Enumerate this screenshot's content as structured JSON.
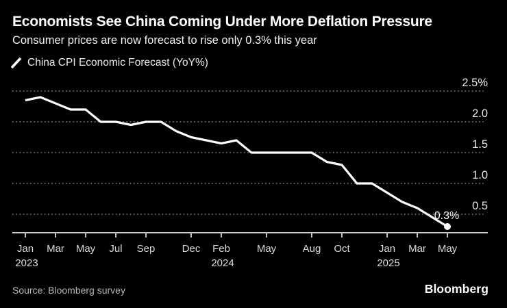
{
  "header": {
    "title": "Economists See China Coming Under More Deflation Pressure",
    "subtitle": "Consumer prices are now forecast to rise only 0.3% this year"
  },
  "legend": {
    "label": "China CPI Economic Forecast (YoY%)"
  },
  "chart_data": {
    "type": "line",
    "title": "China CPI Economic Forecast (YoY%)",
    "series": [
      {
        "name": "China CPI Economic Forecast (YoY%)",
        "values": [
          2.35,
          2.4,
          2.3,
          2.2,
          2.2,
          2.0,
          2.0,
          1.95,
          2.0,
          2.0,
          1.85,
          1.75,
          1.7,
          1.65,
          1.7,
          1.5,
          1.5,
          1.5,
          1.5,
          1.5,
          1.35,
          1.3,
          1.0,
          1.0,
          0.85,
          0.7,
          0.6,
          0.45,
          0.3
        ]
      }
    ],
    "x": [
      "Jan 2023",
      "Feb 2023",
      "Mar 2023",
      "Apr 2023",
      "May 2023",
      "Jun 2023",
      "Jul 2023",
      "Aug 2023",
      "Sep 2023",
      "Oct 2023",
      "Nov 2023",
      "Dec 2023",
      "Jan 2024",
      "Feb 2024",
      "Mar 2024",
      "Apr 2024",
      "May 2024",
      "Jun 2024",
      "Jul 2024",
      "Aug 2024",
      "Sep 2024",
      "Oct 2024",
      "Nov 2024",
      "Dec 2024",
      "Jan 2025",
      "Feb 2025",
      "Mar 2025",
      "Apr 2025",
      "May 2025"
    ],
    "x_ticks": [
      {
        "index": 0,
        "label": "Jan",
        "year": "2023"
      },
      {
        "index": 2,
        "label": "Mar"
      },
      {
        "index": 4,
        "label": "May"
      },
      {
        "index": 6,
        "label": "Jul"
      },
      {
        "index": 8,
        "label": "Sep"
      },
      {
        "index": 11,
        "label": "Dec"
      },
      {
        "index": 13,
        "label": "Feb",
        "year": "2024"
      },
      {
        "index": 16,
        "label": "May"
      },
      {
        "index": 19,
        "label": "Aug"
      },
      {
        "index": 21,
        "label": "Oct"
      },
      {
        "index": 24,
        "label": "Jan",
        "year": "2025"
      },
      {
        "index": 26,
        "label": "Mar"
      },
      {
        "index": 28,
        "label": "May"
      }
    ],
    "y_ticks": [
      {
        "value": 2.5,
        "label": "2.5%"
      },
      {
        "value": 2.0,
        "label": "2.0"
      },
      {
        "value": 1.5,
        "label": "1.5"
      },
      {
        "value": 1.0,
        "label": "1.0"
      },
      {
        "value": 0.5,
        "label": "0.5"
      }
    ],
    "ylim": [
      0.2,
      2.7
    ],
    "grid": true,
    "legend_position": "top-left",
    "end_point_label": "0.3%",
    "line_color": "#ffffff",
    "grid_color": "#7d7d7d",
    "axis_color": "#cfcfcf",
    "tick_label_color": "#d9d9d9",
    "y_label_color": "#e8e8e8"
  },
  "footer": {
    "source": "Source: Bloomberg survey",
    "logo": "Bloomberg"
  },
  "colors": {
    "background": "#000000",
    "title": "#ffffff",
    "line": "#ffffff"
  }
}
